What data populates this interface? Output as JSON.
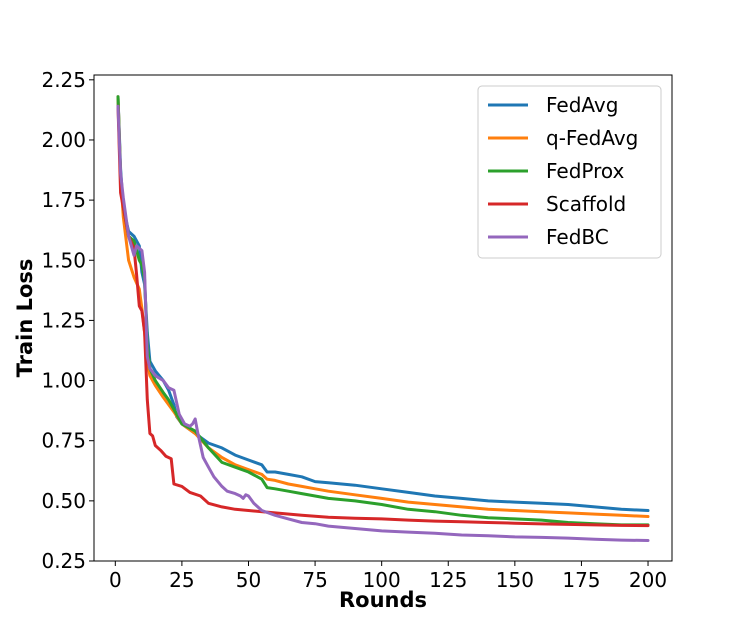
{
  "chart_data": {
    "type": "line",
    "title": "",
    "xlabel": "Rounds",
    "ylabel": "Train Loss",
    "xlim": [
      -8,
      209
    ],
    "ylim": [
      0.25,
      2.27
    ],
    "xticks": [
      0,
      25,
      50,
      75,
      100,
      125,
      150,
      175,
      200
    ],
    "yticks": [
      0.25,
      0.5,
      0.75,
      1.0,
      1.25,
      1.5,
      1.75,
      2.0,
      2.25
    ],
    "ytick_labels": [
      "0.25",
      "0.50",
      "0.75",
      "1.00",
      "1.25",
      "1.50",
      "1.75",
      "2.00",
      "2.25"
    ],
    "grid": false,
    "legend_position": "top-right",
    "series": [
      {
        "name": "FedAvg",
        "color": "#1f77b4",
        "points": [
          [
            1,
            2.18
          ],
          [
            2,
            1.88
          ],
          [
            3,
            1.72
          ],
          [
            5,
            1.62
          ],
          [
            7,
            1.6
          ],
          [
            9,
            1.56
          ],
          [
            10,
            1.45
          ],
          [
            11,
            1.4
          ],
          [
            12,
            1.2
          ],
          [
            13,
            1.08
          ],
          [
            15,
            1.04
          ],
          [
            18,
            1.0
          ],
          [
            20,
            0.96
          ],
          [
            22,
            0.9
          ],
          [
            23,
            0.85
          ],
          [
            25,
            0.82
          ],
          [
            30,
            0.78
          ],
          [
            35,
            0.74
          ],
          [
            40,
            0.72
          ],
          [
            45,
            0.69
          ],
          [
            50,
            0.67
          ],
          [
            55,
            0.65
          ],
          [
            57,
            0.62
          ],
          [
            60,
            0.62
          ],
          [
            65,
            0.61
          ],
          [
            70,
            0.6
          ],
          [
            75,
            0.58
          ],
          [
            80,
            0.575
          ],
          [
            90,
            0.565
          ],
          [
            100,
            0.55
          ],
          [
            110,
            0.535
          ],
          [
            120,
            0.52
          ],
          [
            130,
            0.51
          ],
          [
            140,
            0.5
          ],
          [
            150,
            0.495
          ],
          [
            160,
            0.49
          ],
          [
            170,
            0.485
          ],
          [
            180,
            0.475
          ],
          [
            190,
            0.465
          ],
          [
            200,
            0.46
          ]
        ]
      },
      {
        "name": "q-FedAvg",
        "color": "#ff7f0e",
        "points": [
          [
            1,
            2.18
          ],
          [
            2,
            1.85
          ],
          [
            3,
            1.68
          ],
          [
            5,
            1.5
          ],
          [
            7,
            1.43
          ],
          [
            9,
            1.38
          ],
          [
            10,
            1.3
          ],
          [
            11,
            1.2
          ],
          [
            12,
            1.08
          ],
          [
            13,
            1.02
          ],
          [
            15,
            0.98
          ],
          [
            18,
            0.93
          ],
          [
            20,
            0.9
          ],
          [
            22,
            0.87
          ],
          [
            25,
            0.82
          ],
          [
            30,
            0.78
          ],
          [
            35,
            0.72
          ],
          [
            40,
            0.68
          ],
          [
            45,
            0.65
          ],
          [
            50,
            0.63
          ],
          [
            55,
            0.61
          ],
          [
            57,
            0.59
          ],
          [
            60,
            0.585
          ],
          [
            65,
            0.57
          ],
          [
            70,
            0.56
          ],
          [
            75,
            0.55
          ],
          [
            80,
            0.54
          ],
          [
            90,
            0.525
          ],
          [
            100,
            0.51
          ],
          [
            110,
            0.495
          ],
          [
            120,
            0.485
          ],
          [
            130,
            0.475
          ],
          [
            140,
            0.465
          ],
          [
            150,
            0.46
          ],
          [
            160,
            0.455
          ],
          [
            170,
            0.45
          ],
          [
            180,
            0.445
          ],
          [
            190,
            0.44
          ],
          [
            200,
            0.435
          ]
        ]
      },
      {
        "name": "FedProx",
        "color": "#2ca02c",
        "points": [
          [
            1,
            2.18
          ],
          [
            2,
            1.85
          ],
          [
            3,
            1.72
          ],
          [
            5,
            1.6
          ],
          [
            7,
            1.58
          ],
          [
            9,
            1.5
          ],
          [
            10,
            1.48
          ],
          [
            11,
            1.42
          ],
          [
            12,
            1.15
          ],
          [
            13,
            1.05
          ],
          [
            15,
            1.0
          ],
          [
            18,
            0.95
          ],
          [
            20,
            0.92
          ],
          [
            22,
            0.88
          ],
          [
            25,
            0.82
          ],
          [
            30,
            0.79
          ],
          [
            35,
            0.72
          ],
          [
            40,
            0.66
          ],
          [
            45,
            0.64
          ],
          [
            50,
            0.62
          ],
          [
            55,
            0.59
          ],
          [
            57,
            0.555
          ],
          [
            60,
            0.55
          ],
          [
            65,
            0.54
          ],
          [
            70,
            0.53
          ],
          [
            75,
            0.52
          ],
          [
            80,
            0.51
          ],
          [
            90,
            0.5
          ],
          [
            100,
            0.485
          ],
          [
            110,
            0.465
          ],
          [
            120,
            0.455
          ],
          [
            130,
            0.44
          ],
          [
            140,
            0.43
          ],
          [
            150,
            0.425
          ],
          [
            160,
            0.42
          ],
          [
            170,
            0.41
          ],
          [
            180,
            0.405
          ],
          [
            190,
            0.4
          ],
          [
            200,
            0.4
          ]
        ]
      },
      {
        "name": "Scaffold",
        "color": "#d62728",
        "points": [
          [
            1,
            2.14
          ],
          [
            2,
            1.78
          ],
          [
            3,
            1.72
          ],
          [
            5,
            1.6
          ],
          [
            7,
            1.55
          ],
          [
            8,
            1.44
          ],
          [
            9,
            1.31
          ],
          [
            10,
            1.29
          ],
          [
            11,
            1.2
          ],
          [
            12,
            0.92
          ],
          [
            13,
            0.78
          ],
          [
            14,
            0.77
          ],
          [
            15,
            0.73
          ],
          [
            17,
            0.71
          ],
          [
            19,
            0.685
          ],
          [
            21,
            0.675
          ],
          [
            22,
            0.57
          ],
          [
            25,
            0.56
          ],
          [
            28,
            0.535
          ],
          [
            32,
            0.52
          ],
          [
            35,
            0.49
          ],
          [
            40,
            0.475
          ],
          [
            45,
            0.465
          ],
          [
            50,
            0.46
          ],
          [
            60,
            0.45
          ],
          [
            70,
            0.44
          ],
          [
            80,
            0.432
          ],
          [
            90,
            0.428
          ],
          [
            100,
            0.425
          ],
          [
            110,
            0.42
          ],
          [
            120,
            0.416
          ],
          [
            130,
            0.413
          ],
          [
            140,
            0.41
          ],
          [
            150,
            0.407
          ],
          [
            160,
            0.404
          ],
          [
            170,
            0.402
          ],
          [
            180,
            0.4
          ],
          [
            190,
            0.398
          ],
          [
            200,
            0.397
          ]
        ]
      },
      {
        "name": "FedBC",
        "color": "#9467bd",
        "points": [
          [
            1,
            2.14
          ],
          [
            2,
            1.86
          ],
          [
            3,
            1.76
          ],
          [
            5,
            1.6
          ],
          [
            7,
            1.52
          ],
          [
            8,
            1.56
          ],
          [
            9,
            1.55
          ],
          [
            10,
            1.54
          ],
          [
            11,
            1.45
          ],
          [
            12,
            1.1
          ],
          [
            13,
            1.05
          ],
          [
            15,
            1.02
          ],
          [
            18,
            1.0
          ],
          [
            20,
            0.97
          ],
          [
            22,
            0.96
          ],
          [
            24,
            0.86
          ],
          [
            26,
            0.82
          ],
          [
            28,
            0.81
          ],
          [
            29,
            0.82
          ],
          [
            30,
            0.84
          ],
          [
            31,
            0.78
          ],
          [
            33,
            0.68
          ],
          [
            35,
            0.64
          ],
          [
            37,
            0.6
          ],
          [
            40,
            0.56
          ],
          [
            42,
            0.54
          ],
          [
            45,
            0.53
          ],
          [
            47,
            0.52
          ],
          [
            48,
            0.51
          ],
          [
            49,
            0.525
          ],
          [
            50,
            0.52
          ],
          [
            52,
            0.49
          ],
          [
            55,
            0.46
          ],
          [
            60,
            0.44
          ],
          [
            65,
            0.425
          ],
          [
            70,
            0.41
          ],
          [
            75,
            0.405
          ],
          [
            80,
            0.395
          ],
          [
            90,
            0.385
          ],
          [
            100,
            0.375
          ],
          [
            110,
            0.37
          ],
          [
            120,
            0.365
          ],
          [
            130,
            0.358
          ],
          [
            140,
            0.355
          ],
          [
            150,
            0.35
          ],
          [
            160,
            0.348
          ],
          [
            170,
            0.345
          ],
          [
            180,
            0.34
          ],
          [
            190,
            0.337
          ],
          [
            200,
            0.335
          ]
        ]
      }
    ]
  }
}
